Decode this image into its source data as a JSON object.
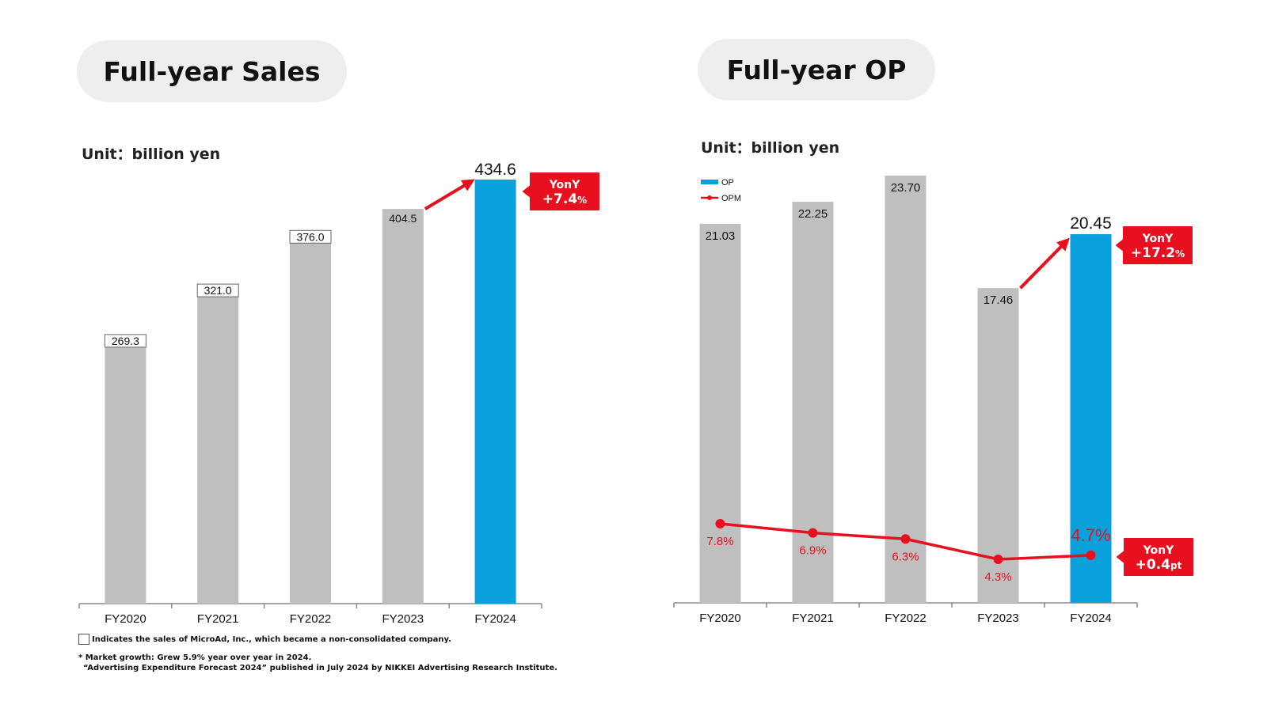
{
  "titles": {
    "sales": "Full-year Sales",
    "op": "Full-year OP"
  },
  "units": {
    "sales": "Unit：billion yen",
    "op": "Unit：billion yen"
  },
  "legend": {
    "op": "OP",
    "opm": "OPM"
  },
  "colors": {
    "past_bar": "#bfbfbf",
    "current_bar": "#0aa0dc",
    "accent": "#e8101e",
    "axis": "#888888"
  },
  "badges": {
    "sales": {
      "label": "YonY",
      "value": "+7.4",
      "unit": "%"
    },
    "op": {
      "label": "YonY",
      "value": "+17.2",
      "unit": "%"
    },
    "opm": {
      "label": "YonY",
      "value": "+0.4",
      "unit": "pt"
    }
  },
  "notes": {
    "microad": "Indicates the sales of MicroAd, Inc., which became a non-consolidated company.",
    "market_line1": "* Market growth: Grew 5.9% year over year in 2024.",
    "market_line2": "“Advertising Expenditure Forecast 2024” published in July 2024 by NIKKEI Advertising Research Institute."
  },
  "chart_data": [
    {
      "type": "bar",
      "title": "Full-year Sales",
      "ylabel": "Unit：billion yen",
      "categories": [
        "FY2020",
        "FY2021",
        "FY2022",
        "FY2023",
        "FY2024"
      ],
      "values": [
        269.3,
        321.0,
        376.0,
        404.5,
        434.6
      ],
      "value_labels": [
        "269.3",
        "321.0",
        "376.0",
        "404.5",
        "434.6"
      ],
      "boxed_labels": [
        true,
        true,
        true,
        false,
        false
      ],
      "highlight_index": 4,
      "ylim": [
        0,
        434.6
      ],
      "grid": false
    },
    {
      "type": "bar",
      "title": "Full-year OP",
      "ylabel": "Unit：billion yen",
      "categories": [
        "FY2020",
        "FY2021",
        "FY2022",
        "FY2023",
        "FY2024"
      ],
      "series": [
        {
          "name": "OP",
          "type": "bar",
          "values": [
            21.03,
            22.25,
            23.7,
            17.46,
            20.45
          ],
          "labels": [
            "21.03",
            "22.25",
            "23.70",
            "17.46",
            "20.45"
          ]
        },
        {
          "name": "OPM",
          "type": "line",
          "values": [
            7.8,
            6.9,
            6.3,
            4.3,
            4.7
          ],
          "labels": [
            "7.8%",
            "6.9%",
            "6.3%",
            "4.3%",
            "4.7%"
          ]
        }
      ],
      "highlight_index": 4,
      "ylim": [
        0,
        23.7
      ],
      "grid": false,
      "legend": "top-left"
    }
  ]
}
